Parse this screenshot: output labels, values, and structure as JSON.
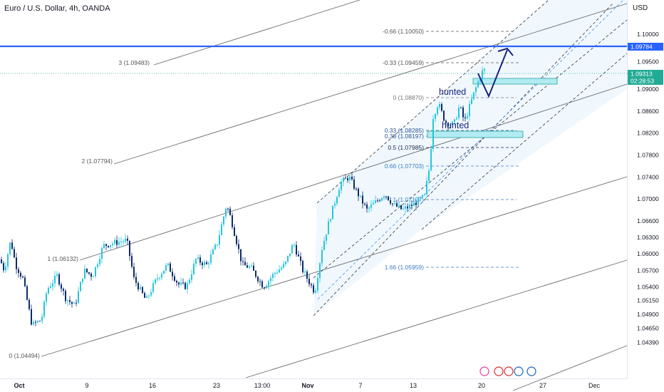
{
  "header": {
    "title": "Euro / U.S. Dollar, 4h, OANDA",
    "currency": "USD"
  },
  "chart_data": {
    "type": "candlestick",
    "symbol": "EURUSD",
    "timeframe": "4h",
    "y_axis": {
      "ticks": [
        1.1,
        1.095,
        1.09,
        1.086,
        1.082,
        1.078,
        1.074,
        1.07,
        1.066,
        1.063,
        1.06,
        1.057,
        1.054,
        1.0515,
        1.049,
        1.0465,
        1.0439
      ],
      "tick_labels": [
        "1.10000",
        "1.09500",
        "1.09000",
        "1.08600",
        "1.08200",
        "1.07800",
        "1.07400",
        "1.07000",
        "1.06600",
        "1.06300",
        "1.06000",
        "1.05700",
        "1.05400",
        "1.05150",
        "1.04900",
        "1.04650",
        "1.04390"
      ]
    },
    "x_axis": {
      "labels": [
        "Oct",
        "9",
        "16",
        "23",
        "13:00",
        "Nov",
        "7",
        "13",
        "20",
        "27",
        "Dec"
      ],
      "bold_labels": [
        "Oct",
        "Nov"
      ]
    },
    "price_labels": [
      {
        "text": "1.09784",
        "value": 1.09784,
        "color": "#2962ff"
      },
      {
        "text": "1.09313",
        "value": 1.09313,
        "color": "#22ab94"
      },
      {
        "text": "02:28:53",
        "value": 1.0915,
        "color": "#22ab94"
      }
    ],
    "horizontal_line": {
      "value": 1.09784,
      "color": "#2962ff"
    },
    "current_price_line": {
      "value": 1.09313,
      "color": "#26a69a"
    },
    "pitchfork_labels": [
      {
        "text": "3 (1.09483)",
        "value": 1.09483
      },
      {
        "text": "2 (1.07794)",
        "value": 1.07794
      },
      {
        "text": "1 (1.06132)",
        "value": 1.06132
      },
      {
        "text": "0 (1.04494)",
        "value": 1.04494
      }
    ],
    "fib_levels": [
      {
        "text": "-0.66 (1.10050)",
        "value": 1.1005,
        "color": "#555555"
      },
      {
        "text": "-0.33 (1.09459)",
        "value": 1.09459,
        "color": "#555555"
      },
      {
        "text": "0 (1.08870)",
        "value": 1.0887,
        "color": "#777777"
      },
      {
        "text": "0.33 (1.08285)",
        "value": 1.08285,
        "color": "#2f5597"
      },
      {
        "text": "0.38 (1.08197)",
        "value": 1.08197,
        "color": "#2f5597"
      },
      {
        "text": "0.5 (1.07985)",
        "value": 1.07985,
        "color": "#1a2a50"
      },
      {
        "text": "0.66 (1.07703)",
        "value": 1.07703,
        "color": "#3b7bbf"
      },
      {
        "text": "1 (1.07107)",
        "value": 1.07107,
        "color": "#3b7bbf"
      },
      {
        "text": "1.66 (1.05959)",
        "value": 1.05959,
        "color": "#3b7bbf"
      }
    ],
    "annotations": [
      "hunted",
      "hunted"
    ],
    "colors": {
      "up": "#26c6da",
      "down": "#0d2a6b",
      "accent": "#2962ff"
    }
  }
}
